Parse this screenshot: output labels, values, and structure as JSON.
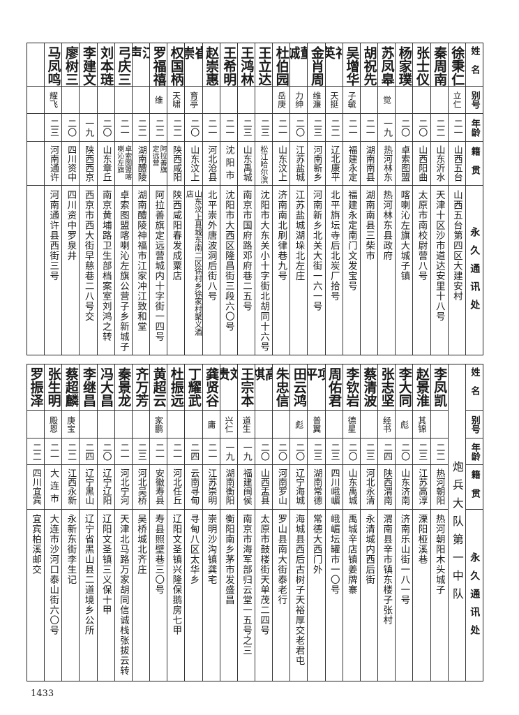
{
  "headers": {
    "name": "姓名",
    "alias": "别号",
    "age": "年龄",
    "origin": "籍贯",
    "address": "永久通讯处"
  },
  "top": {
    "people": [
      {
        "name": "徐秉仁",
        "alias": "立仁",
        "age": "二一",
        "origin": "山西五台",
        "address": "山西五台第四区大建安村"
      },
      {
        "name": "秦周南",
        "alias": "",
        "age": "二二",
        "origin": "山东沂水",
        "address": "天津十区沙市道达安里十八号"
      },
      {
        "name": "张士仪",
        "alias": "",
        "age": "二〇",
        "origin": "山西阳曲",
        "address": "太原市南校尉营八号"
      },
      {
        "name": "杨家璞",
        "alias": "",
        "age": "二〇",
        "origin": "卓索图盟",
        "address": "喀喇沁左旗大城子镇"
      },
      {
        "name": "苏凤皋",
        "alias": "觉",
        "age": "一九",
        "origin": "热河林东",
        "address": "热河林东县政府"
      },
      {
        "name": "胡祝先",
        "alias": "",
        "age": "二一",
        "origin": "湖南南县",
        "address": "湖南南县三柴市"
      },
      {
        "name": "吴增华",
        "alias": "子毓",
        "age": "二一",
        "origin": "福建永定",
        "address": "福建永定南门文发宝号"
      },
      {
        "name": "祁英",
        "alias": "天挺",
        "age": "二二",
        "origin": "辽北康平",
        "address": "北平旃坛寺后北炭厂拾号"
      },
      {
        "name": "金肖周",
        "alias": "维濂",
        "age": "二三",
        "origin": "河南新乡",
        "address": "河南新乡北关大街一六一号"
      },
      {
        "name": "董诚",
        "alias": "力绅",
        "age": "二〇",
        "origin": "江苏盐城",
        "address": "江苏盐城湖垛北左庄"
      },
      {
        "name": "杜伯园",
        "alias": "岳庚",
        "age": "二一",
        "origin": "山东汶上",
        "address": "济南南北刷律巷九号"
      },
      {
        "name": "王立达",
        "alias": "",
        "age": "二三",
        "origin": "松江哈尔滨",
        "address": "沈阳市大东关小十字街北胡同十六号"
      },
      {
        "name": "王鸿林",
        "alias": "",
        "age": "二三",
        "origin": "山东禹城",
        "address": "南京市国府路邓府巷二五号"
      },
      {
        "name": "王希明",
        "alias": "",
        "age": "二一",
        "origin": "沈阳市",
        "address": "沈阳市大西区隆昌街三段六〇号"
      },
      {
        "name": "赵崇惠",
        "alias": "",
        "age": "二一",
        "origin": "河北沧县",
        "address": "北平崇外唐波洞后街八号"
      },
      {
        "name": "崔崇",
        "alias": "育亭",
        "age": "二〇",
        "origin": "山东汶上",
        "address": "山东汶上县城东南二区徐村乡徐家村聚义酒店"
      },
      {
        "name": "权国柄",
        "alias": "天啸",
        "age": "二二",
        "origin": "陕西咸阳",
        "address": "陕西咸阳春发成粟店"
      },
      {
        "name": "罗福禧",
        "alias": "维",
        "age": "二二",
        "origin": "阿拉善旗定远营",
        "address": "阿拉善旗定远营城内十字街一四号"
      },
      {
        "name": "江声",
        "alias": "",
        "age": "二二",
        "origin": "湖南醴陵",
        "address": "湖南醴陵神福市江家冲江致和堂"
      },
      {
        "name": "弓庆三",
        "alias": "",
        "age": "二一",
        "origin": "卓索图盟喀喇沁左旗",
        "address": "卓索图盟喀喇沁左旗公营子乡新城子"
      },
      {
        "name": "刘本琏",
        "alias": "",
        "age": "二〇",
        "origin": "山东章丘",
        "address": "南京黄埔路卫生部档案室刘鸿之转"
      },
      {
        "name": "李建文",
        "alias": "",
        "age": "一九",
        "origin": "陕西西京",
        "address": "西京市西大街早慈巷二八号交"
      },
      {
        "name": "廖树三",
        "alias": "",
        "age": "二〇",
        "origin": "四川资中",
        "address": "四川资中罗泉井"
      },
      {
        "name": "马凤鸣",
        "alias": "耀飞",
        "age": "二三",
        "origin": "河南通许",
        "address": "河南通许县西街三号"
      }
    ]
  },
  "bottom": {
    "group_label": "炮兵大队第一中队",
    "people": [
      {
        "name": "李凤凯",
        "alias": "",
        "age": "二二",
        "origin": "热河朝阳",
        "address": "热河朝阳木头城子"
      },
      {
        "name": "赵景淮",
        "alias": "其锦",
        "age": "二三",
        "origin": "江苏高淳",
        "address": "溧阳桠溪巷"
      },
      {
        "name": "李大同",
        "alias": "彪",
        "age": "二〇",
        "origin": "山东济南",
        "address": "济南乐山街一八一号"
      },
      {
        "name": "张志坚",
        "alias": "经书",
        "age": "二四",
        "origin": "陕西渭南",
        "address": "渭南县辛市镇东楼子张村"
      },
      {
        "name": "蔡清波",
        "alias": "",
        "age": "二三",
        "origin": "河北永清",
        "address": "永清城内西后街"
      },
      {
        "name": "李钦岩",
        "alias": "德星",
        "age": "二〇",
        "origin": "山东禹城",
        "address": "禹城辛店镇姜牌寨"
      },
      {
        "name": "周佑君",
        "alias": "",
        "age": "二三",
        "origin": "四川峨嵋",
        "address": "峨嵋坛罐市一〇号"
      },
      {
        "name": "项平",
        "alias": "普翼",
        "age": "二三",
        "origin": "湖南常德",
        "address": "常德大西门外"
      },
      {
        "name": "田云鸿",
        "alias": "彪",
        "age": "二〇",
        "origin": "辽宁海城",
        "address": "海城县西后古树子天裕厚交老君屯"
      },
      {
        "name": "朱忠信",
        "alias": "",
        "age": "二〇",
        "origin": "河南罗山",
        "address": "罗山县南大街泰老行"
      },
      {
        "name": "高祺",
        "alias": "",
        "age": "二〇",
        "origin": "山西盂县",
        "address": "太原市鼓楼街天单茂二四号"
      },
      {
        "name": "王宗本",
        "alias": "道生",
        "age": "一九",
        "origin": "福建闽侯",
        "address": "南京市海军部归云堂一五号之三"
      },
      {
        "name": "刘贵",
        "alias": "兴仁",
        "age": "一九",
        "origin": "湖南衡阳",
        "address": "衡阳南乡茅市发盛昌"
      },
      {
        "name": "龚贤谷",
        "alias": "庸",
        "age": "二一",
        "origin": "江苏崇明",
        "address": "崇明沙沟镇龚宅"
      },
      {
        "name": "丁耀武",
        "alias": "",
        "age": "二四",
        "origin": "云南寻甸",
        "address": "寻甸八区太华乡"
      },
      {
        "name": "杜振远",
        "alias": "",
        "age": "二一",
        "origin": "河北任丘",
        "address": "辽阳文圣镇兴隆保鹅房七甲"
      },
      {
        "name": "黄超云",
        "alias": "家鹏",
        "age": "二一",
        "origin": "安徽寿县",
        "address": "寿县照壁巷三〇号"
      },
      {
        "name": "齐万芳",
        "alias": "",
        "age": "二三",
        "origin": "河北吴桥",
        "address": "吴桥城北齐庄"
      },
      {
        "name": "秦景龙",
        "alias": "",
        "age": "二一",
        "origin": "河北宁河",
        "address": "天津北马路万家胡同信诚栈张拔云转"
      },
      {
        "name": "冯大昌",
        "alias": "",
        "age": "二〇",
        "origin": "辽宁辽阳",
        "address": "辽阳文圣镇三义保十甲"
      },
      {
        "name": "李继昌",
        "alias": "",
        "age": "二四",
        "origin": "辽宁黑山",
        "address": "辽宁省黑山县二道境乡公所"
      },
      {
        "name": "蔡超麟",
        "alias": "庚宝",
        "age": "二二",
        "origin": "江西永新",
        "address": "永新东街李生记"
      },
      {
        "name": "张生明",
        "alias": "殿恩",
        "age": "二一",
        "origin": "大连市",
        "address": "大连市沙河口泰山街六〇号"
      },
      {
        "name": "罗振泽",
        "alias": "",
        "age": "二二",
        "origin": "四川宜宾",
        "address": "宜宾柏溪邮交"
      }
    ]
  },
  "page_number": "1433"
}
